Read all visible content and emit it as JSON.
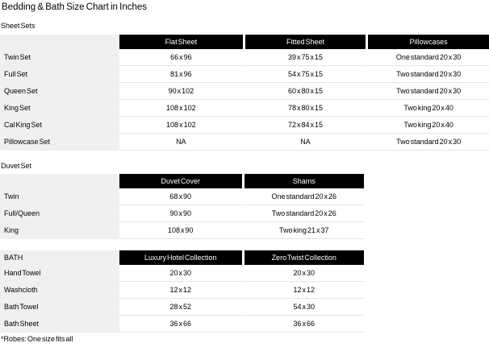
{
  "title": "Bedding & Bath Size Chart in Inches",
  "footnote": "*Robes: One size fits all",
  "colors": {
    "header_bg": "#000000",
    "header_text": "#ffffff",
    "label_column_bg": "#f0f0f0",
    "row_divider": "#e4e4e4",
    "page_bg": "#ffffff",
    "text": "#000000"
  },
  "sheet_sets": {
    "label": "Sheet Sets",
    "columns": {
      "c1": "Flat Sheet",
      "c2": "Fitted Sheet",
      "c3": "Pillowcases"
    },
    "rows": [
      {
        "label": "Twin Set",
        "v1": "66 x 96",
        "v2": "39 x 75 x 15",
        "v3": "One standard 20 x 30"
      },
      {
        "label": "Full Set",
        "v1": "81 x 96",
        "v2": "54 x 75 x 15",
        "v3": "Two standard 20 x 30"
      },
      {
        "label": "Queen Set",
        "v1": "90 x 102",
        "v2": "60 x 80 x 15",
        "v3": "Two standard 20 x 30"
      },
      {
        "label": "King Set",
        "v1": "108 x 102",
        "v2": "78 x 80 x 15",
        "v3": "Two king 20 x 40"
      },
      {
        "label": "Cal King Set",
        "v1": "108 x 102",
        "v2": "72 x 84 x 15",
        "v3": "Two king 20 x 40"
      },
      {
        "label": "Pillowcase Set",
        "v1": "NA",
        "v2": "NA",
        "v3": "Two standard 20 x 30"
      }
    ]
  },
  "duvet_set": {
    "label": "Duvet Set",
    "columns": {
      "c1": "Duvet Cover",
      "c2": "Shams"
    },
    "rows": [
      {
        "label": "Twin",
        "v1": "68 x 90",
        "v2": "One standard 20 x 26"
      },
      {
        "label": "Full/Queen",
        "v1": "90 x 90",
        "v2": "Two standard 20 x 26"
      },
      {
        "label": "King",
        "v1": "108 x 90",
        "v2": "Two king 21 x 37"
      }
    ]
  },
  "bath": {
    "label": "BATH",
    "columns": {
      "c1": "Luxury Hotel Collection",
      "c2": "Zero Twist Collection"
    },
    "rows": [
      {
        "label": "Hand Towel",
        "v1": "20 x 30",
        "v2": "20 x 30"
      },
      {
        "label": "Washcloth",
        "v1": "12 x 12",
        "v2": "12 x 12"
      },
      {
        "label": "Bath Towel",
        "v1": "28 x 52",
        "v2": "54 x 30"
      },
      {
        "label": "Bath Sheet",
        "v1": "36 x 66",
        "v2": "36 x 66"
      }
    ]
  }
}
